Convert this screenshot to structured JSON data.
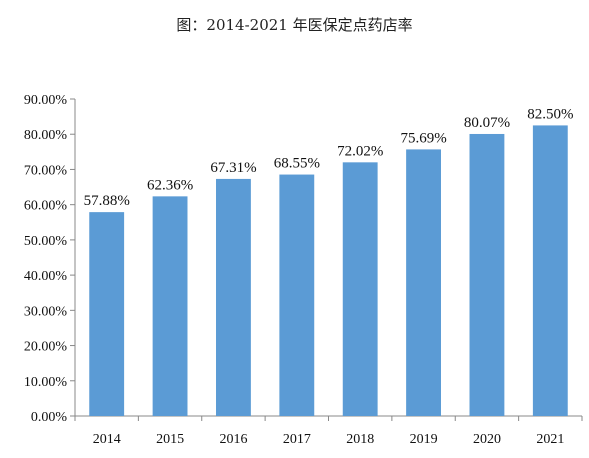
{
  "chart_data": {
    "type": "bar",
    "title": "图：2014-2021 年医保定点药店率",
    "categories": [
      "2014",
      "2015",
      "2016",
      "2017",
      "2018",
      "2019",
      "2020",
      "2021"
    ],
    "values": [
      57.88,
      62.36,
      67.31,
      68.55,
      72.02,
      75.69,
      80.07,
      82.5
    ],
    "data_labels": [
      "57.88%",
      "62.36%",
      "67.31%",
      "68.55%",
      "72.02%",
      "75.69%",
      "80.07%",
      "82.50%"
    ],
    "y_ticks": [
      0,
      10,
      20,
      30,
      40,
      50,
      60,
      70,
      80,
      90
    ],
    "y_tick_labels": [
      "0.00%",
      "10.00%",
      "20.00%",
      "30.00%",
      "40.00%",
      "50.00%",
      "60.00%",
      "70.00%",
      "80.00%",
      "90.00%"
    ],
    "ylim": [
      0,
      90
    ],
    "grid": false,
    "legend": "none",
    "bar_color": "#5b9bd5",
    "axis_color": "#888888"
  }
}
